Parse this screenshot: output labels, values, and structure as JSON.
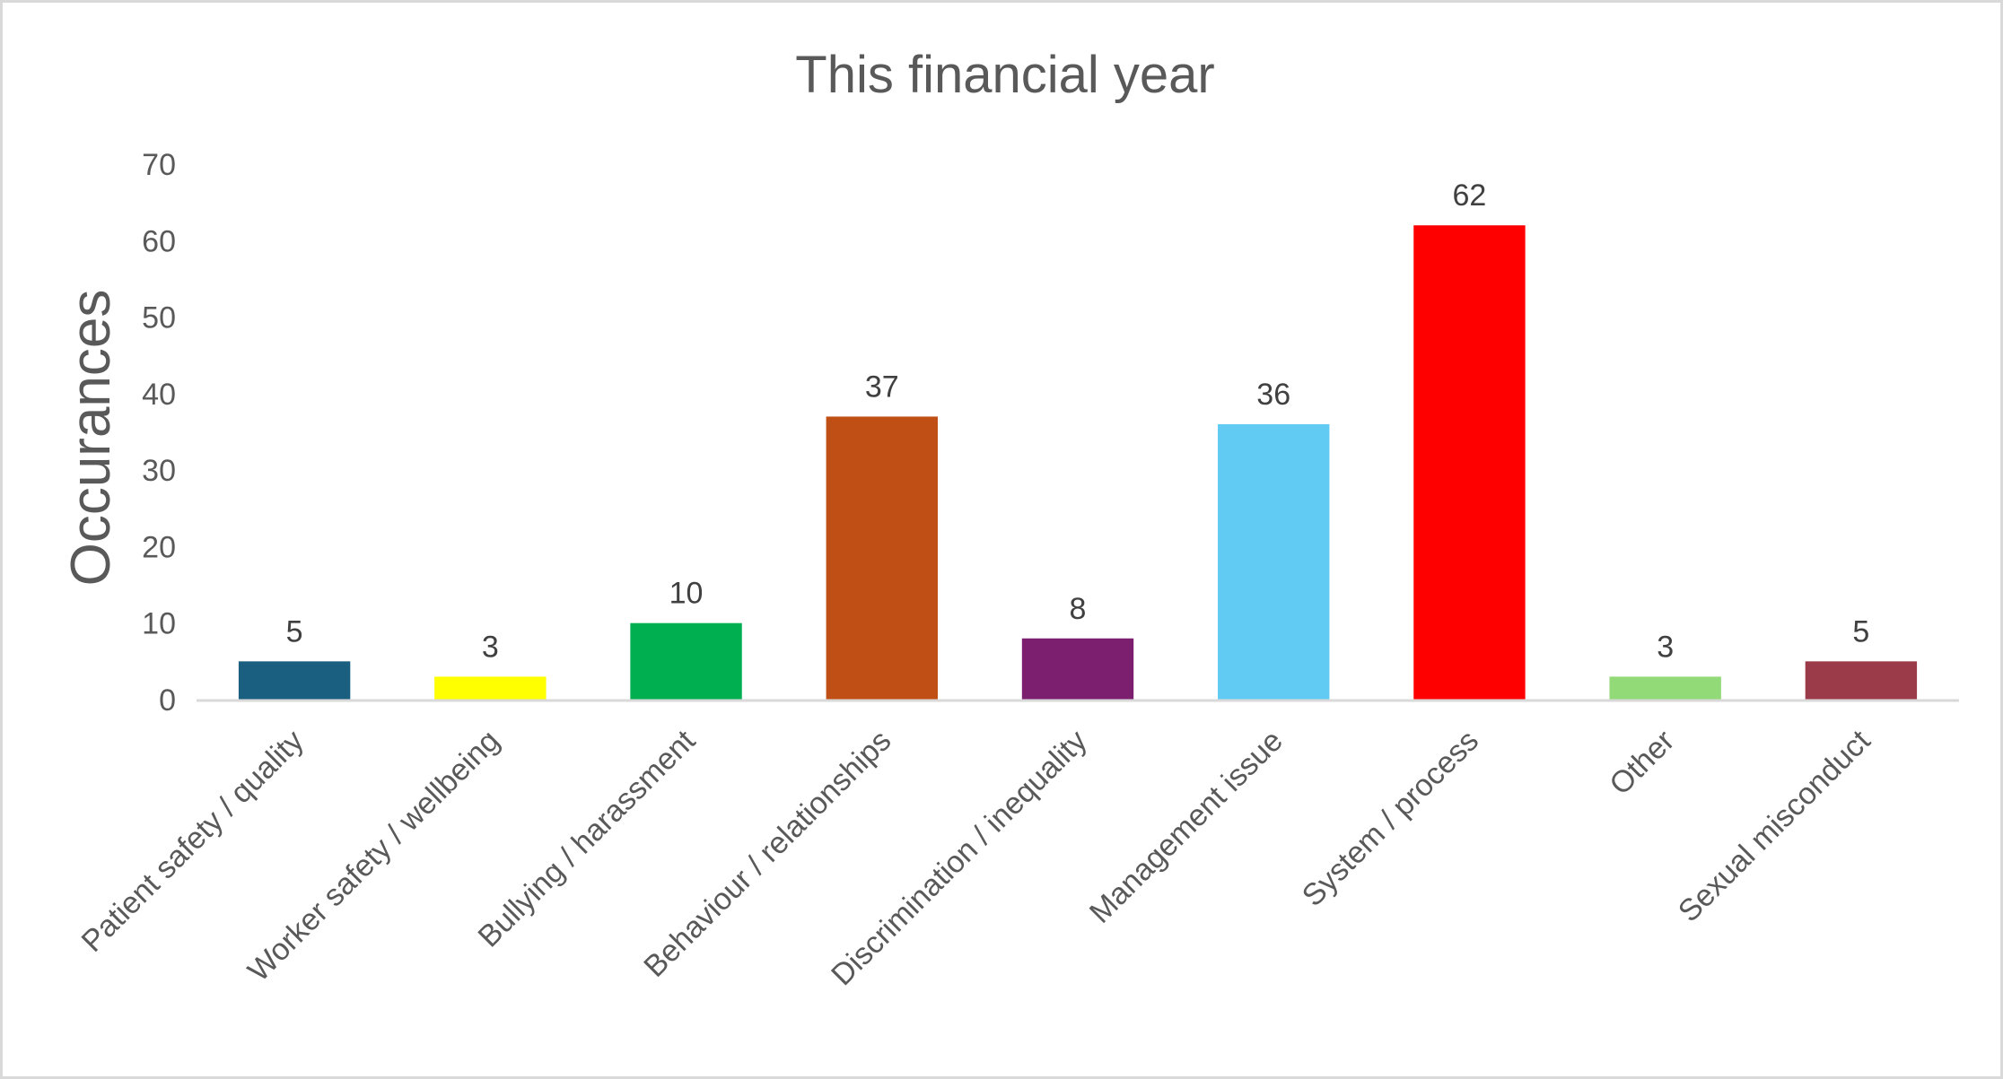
{
  "chart_data": {
    "type": "bar",
    "title": "This financial year",
    "xlabel": "",
    "ylabel": "Occurances",
    "ylim": [
      0,
      70
    ],
    "yticks": [
      0,
      10,
      20,
      30,
      40,
      50,
      60,
      70
    ],
    "grid": false,
    "legend": "none",
    "categories": [
      "Patient safety / quality",
      "Worker safety / wellbeing",
      "Bullying / harassment",
      "Behaviour / relationships",
      "Discrimination / inequality",
      "Management issue",
      "System / process",
      "Other",
      "Sexual misconduct"
    ],
    "values": [
      5,
      3,
      10,
      37,
      8,
      36,
      62,
      3,
      5
    ],
    "colors": [
      "#1a5e80",
      "#ffff00",
      "#00b050",
      "#c04f15",
      "#7b1f6e",
      "#61cbf3",
      "#ff0000",
      "#92d978",
      "#9b3a48"
    ],
    "data_labels": true,
    "text_color": "#595959",
    "axis_color": "#d9d9d9"
  }
}
